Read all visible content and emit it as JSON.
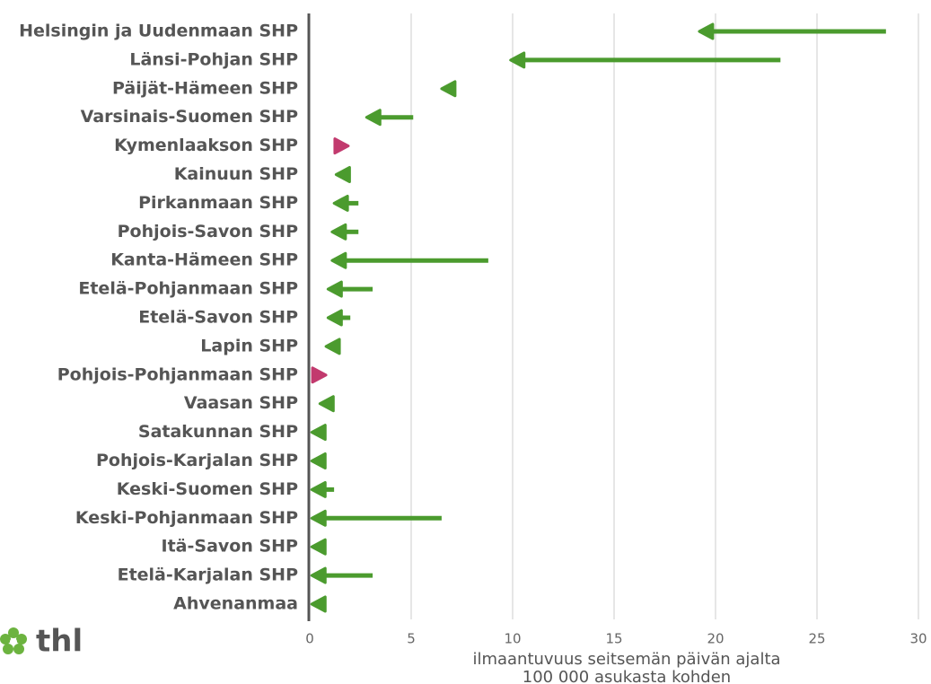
{
  "chart_data": {
    "type": "arrow",
    "categories": [
      "Helsingin ja Uudenmaan SHP",
      "Länsi-Pohjan SHP",
      "Päijät-Hämeen SHP",
      "Varsinais-Suomen SHP",
      "Kymenlaakson SHP",
      "Kainuun SHP",
      "Pirkanmaan SHP",
      "Pohjois-Savon SHP",
      "Kanta-Hämeen SHP",
      "Etelä-Pohjanmaan SHP",
      "Etelä-Savon SHP",
      "Lapin SHP",
      "Pohjois-Pohjanmaan SHP",
      "Vaasan SHP",
      "Satakunnan SHP",
      "Pohjois-Karjalan SHP",
      "Keski-Suomen SHP",
      "Keski-Pohjanmaan SHP",
      "Itä-Savon SHP",
      "Etelä-Karjalan SHP",
      "Ahvenanmaa"
    ],
    "series": [
      {
        "values": [
          28.4,
          23.2,
          7.2,
          5.1,
          1.2,
          1.9,
          2.4,
          2.4,
          8.8,
          3.1,
          2.0,
          1.4,
          0.1,
          1.2,
          0.5,
          0.5,
          1.2,
          6.5,
          0.5,
          3.1,
          0.5
        ]
      },
      {
        "values": [
          19.2,
          9.9,
          6.5,
          2.8,
          1.9,
          1.3,
          1.2,
          1.1,
          1.1,
          0.9,
          0.9,
          0.8,
          0.8,
          0.5,
          0.1,
          0.1,
          0.1,
          0.1,
          0.1,
          0.1,
          0.1
        ]
      }
    ],
    "colors": {
      "decrease": "#4b9b2e",
      "increase": "#c23a6e"
    },
    "xlim": [
      0,
      30
    ],
    "xticks": [
      0,
      5,
      10,
      15,
      20,
      25,
      30
    ],
    "grid": true,
    "xlabel": [
      "ilmaantuvuus seitsemän päivän ajalta",
      "100 000 asukasta kohden"
    ]
  },
  "logo": "thl"
}
